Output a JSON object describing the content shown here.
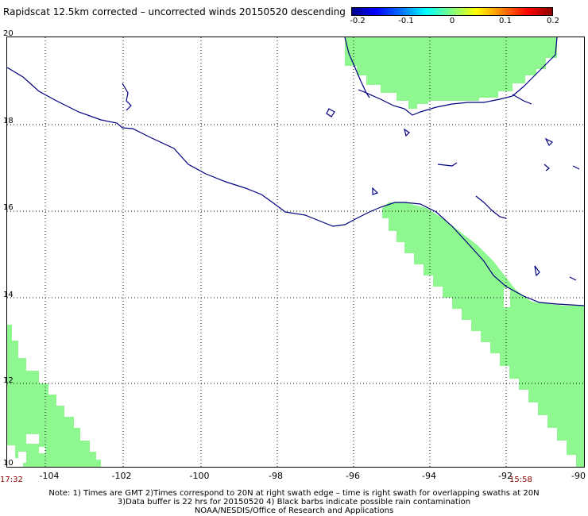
{
  "title": "Rapidscat 12.5km corrected – uncorrected winds 20150520 descending",
  "colorbar": {
    "ticks": [
      "-0.2",
      "-0.1",
      "0",
      "0.1",
      "0.2"
    ],
    "colors": [
      "#00008b",
      "#0000ff",
      "#00ffff",
      "#80ff80",
      "#ffff00",
      "#ff0000",
      "#8b0000"
    ]
  },
  "map": {
    "latitude_labels": [
      "20",
      "18",
      "16",
      "14",
      "12",
      "10"
    ],
    "longitude_labels": [
      "-104",
      "-102",
      "-100",
      "-98",
      "-96",
      "-94",
      "-92",
      "-90"
    ],
    "extent": {
      "lon": [
        -104.2,
        -90
      ],
      "lat": [
        10,
        20
      ]
    },
    "swath_color": "#8ff78f",
    "coast_color": "#000080"
  },
  "times": {
    "left": "17:32",
    "right": "15:58"
  },
  "notes": [
    "Note: 1) Times are GMT 2)Times correspond to 20N at right swath edge – time is right swath for overlapping swaths at 20N",
    "3)Data buffer is 22 hrs for 20150520 4) Black barbs indicate possible rain contamination",
    "NOAA/NESDIS/Office of Research and Applications"
  ]
}
